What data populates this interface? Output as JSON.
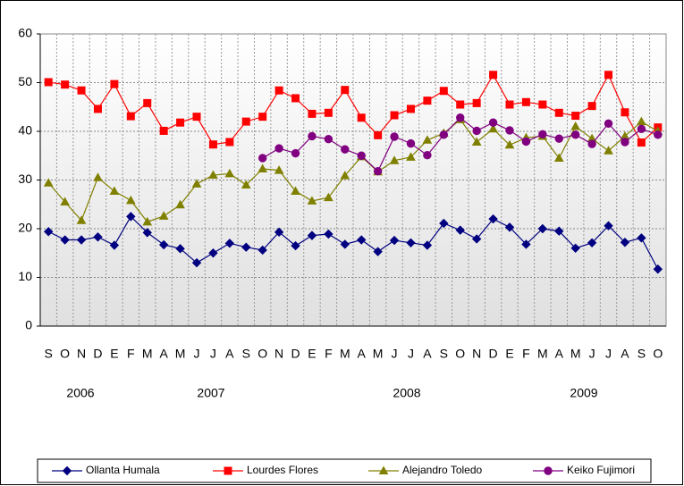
{
  "chart_data": {
    "type": "line",
    "categories": [
      "S",
      "O",
      "N",
      "D",
      "E",
      "F",
      "M",
      "A",
      "M",
      "J",
      "J",
      "A",
      "S",
      "O",
      "N",
      "D",
      "E",
      "F",
      "M",
      "A",
      "M",
      "J",
      "J",
      "A",
      "S",
      "O",
      "N",
      "D",
      "E",
      "F",
      "M",
      "A",
      "M",
      "J",
      "J",
      "A",
      "S",
      "O"
    ],
    "years": [
      "2006",
      "2007",
      "2008",
      "2009"
    ],
    "ylim": [
      0,
      60
    ],
    "yticks": [
      0,
      10,
      20,
      30,
      40,
      50,
      60
    ],
    "grid": true,
    "legend": "bottom",
    "series": [
      {
        "name": "Ollanta Humala",
        "color": "#000080",
        "marker": "diamond",
        "values": [
          19.4,
          17.7,
          17.7,
          18.3,
          16.6,
          22.5,
          19.2,
          16.7,
          15.9,
          13.0,
          15.0,
          17.0,
          16.2,
          15.6,
          19.3,
          16.5,
          18.6,
          18.9,
          16.8,
          17.7,
          15.3,
          17.6,
          17.1,
          16.6,
          21.1,
          19.7,
          17.9,
          22.0,
          20.3,
          16.8,
          20.0,
          19.5,
          16.0,
          17.1,
          20.6,
          17.2,
          18.1,
          11.7
        ]
      },
      {
        "name": "Lourdes Flores",
        "color": "#ff0000",
        "marker": "square",
        "values": [
          50.1,
          49.6,
          48.4,
          44.6,
          49.7,
          43.1,
          45.8,
          40.1,
          41.8,
          43.0,
          37.3,
          37.8,
          42.0,
          43.0,
          48.4,
          46.8,
          43.6,
          43.8,
          48.5,
          42.8,
          39.2,
          43.3,
          44.6,
          46.3,
          48.3,
          45.5,
          45.8,
          51.6,
          45.5,
          46.0,
          45.5,
          43.8,
          43.2,
          45.2,
          51.6,
          43.9,
          37.7,
          40.8
        ]
      },
      {
        "name": "Alejandro Toledo",
        "color": "#808000",
        "marker": "triangle",
        "values": [
          29.4,
          25.5,
          21.7,
          30.5,
          27.7,
          25.8,
          21.4,
          22.6,
          24.9,
          29.2,
          31.0,
          31.3,
          29.0,
          32.3,
          32.0,
          27.7,
          25.7,
          26.4,
          30.9,
          34.8,
          31.7,
          34.0,
          34.7,
          38.2,
          39.6,
          42.4,
          37.8,
          40.5,
          37.2,
          38.7,
          39.0,
          34.5,
          41.0,
          38.5,
          36.0,
          39.0,
          42.0,
          40.0
        ]
      },
      {
        "name": "Keiko Fujimori",
        "color": "#800080",
        "marker": "circle",
        "values": [
          null,
          null,
          null,
          null,
          null,
          null,
          null,
          null,
          null,
          null,
          null,
          null,
          null,
          34.5,
          36.5,
          35.5,
          39.0,
          38.4,
          36.3,
          35.0,
          31.8,
          38.9,
          37.5,
          35.1,
          39.3,
          42.8,
          40.1,
          41.8,
          40.2,
          37.9,
          39.4,
          38.5,
          39.3,
          37.4,
          41.6,
          37.8,
          40.5,
          39.3
        ]
      }
    ]
  }
}
